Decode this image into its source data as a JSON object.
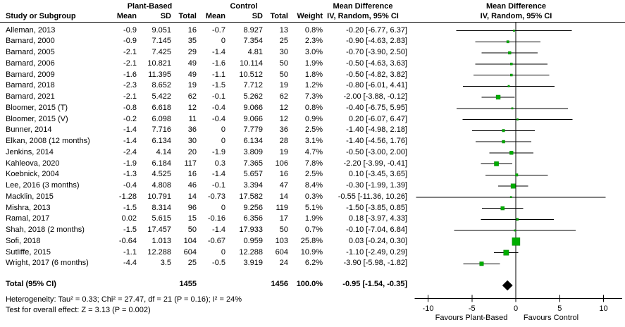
{
  "header": {
    "study": "Study or Subgroup",
    "group1": "Plant-Based",
    "group2": "Control",
    "mean": "Mean",
    "sd": "SD",
    "total": "Total",
    "weight": "Weight",
    "md_title": "Mean Difference",
    "md_subtitle": "IV, Random, 95% CI"
  },
  "colors": {
    "marker_fill": "#00AD00",
    "marker_stroke": "#008100",
    "line": "#000000",
    "diamond": "#000000",
    "text": "#000000"
  },
  "chart_data": {
    "type": "forest",
    "title": "Mean Difference",
    "effect_measure": "IV, Random, 95% CI",
    "axis": {
      "ticks": [
        -10,
        -5,
        0,
        5,
        10
      ],
      "tick_labels": [
        "-10",
        "-5",
        "0",
        "5",
        "10"
      ],
      "xlim": [
        -11.6,
        12.2
      ],
      "zero_line": 0,
      "favours_left": "Favours Plant-Based",
      "favours_right": "Favours Control"
    },
    "studies": [
      {
        "name": "Alleman, 2013",
        "mean1": "-0.9",
        "sd1": "9.051",
        "n1": "16",
        "mean2": "-0.7",
        "sd2": "8.927",
        "n2": "13",
        "weight": "0.8%",
        "weight_pct": 0.8,
        "md": -0.2,
        "lo": -6.77,
        "hi": 6.37,
        "ci": "-0.20 [-6.77, 6.37]"
      },
      {
        "name": "Barnard, 2000",
        "mean1": "-0.9",
        "sd1": "7.145",
        "n1": "35",
        "mean2": "0",
        "sd2": "7.354",
        "n2": "25",
        "weight": "2.3%",
        "weight_pct": 2.3,
        "md": -0.9,
        "lo": -4.63,
        "hi": 2.83,
        "ci": "-0.90 [-4.63, 2.83]"
      },
      {
        "name": "Barnard, 2005",
        "mean1": "-2.1",
        "sd1": "7.425",
        "n1": "29",
        "mean2": "-1.4",
        "sd2": "4.81",
        "n2": "30",
        "weight": "3.0%",
        "weight_pct": 3.0,
        "md": -0.7,
        "lo": -3.9,
        "hi": 2.5,
        "ci": "-0.70 [-3.90, 2.50]"
      },
      {
        "name": "Barnard, 2006",
        "mean1": "-2.1",
        "sd1": "10.821",
        "n1": "49",
        "mean2": "-1.6",
        "sd2": "10.114",
        "n2": "50",
        "weight": "1.9%",
        "weight_pct": 1.9,
        "md": -0.5,
        "lo": -4.63,
        "hi": 3.63,
        "ci": "-0.50 [-4.63, 3.63]"
      },
      {
        "name": "Barnard, 2009",
        "mean1": "-1.6",
        "sd1": "11.395",
        "n1": "49",
        "mean2": "-1.1",
        "sd2": "10.512",
        "n2": "50",
        "weight": "1.8%",
        "weight_pct": 1.8,
        "md": -0.5,
        "lo": -4.82,
        "hi": 3.82,
        "ci": "-0.50 [-4.82, 3.82]"
      },
      {
        "name": "Barnard, 2018",
        "mean1": "-2.3",
        "sd1": "8.652",
        "n1": "19",
        "mean2": "-1.5",
        "sd2": "7.712",
        "n2": "19",
        "weight": "1.2%",
        "weight_pct": 1.2,
        "md": -0.8,
        "lo": -6.01,
        "hi": 4.41,
        "ci": "-0.80 [-6.01, 4.41]"
      },
      {
        "name": "Barnard, 2021",
        "mean1": "-2.1",
        "sd1": "5.422",
        "n1": "62",
        "mean2": "-0.1",
        "sd2": "5.262",
        "n2": "62",
        "weight": "7.3%",
        "weight_pct": 7.3,
        "md": -2.0,
        "lo": -3.88,
        "hi": -0.12,
        "ci": "-2.00 [-3.88, -0.12]"
      },
      {
        "name": "Bloomer, 2015 (T)",
        "mean1": "-0.8",
        "sd1": "6.618",
        "n1": "12",
        "mean2": "-0.4",
        "sd2": "9.066",
        "n2": "12",
        "weight": "0.8%",
        "weight_pct": 0.8,
        "md": -0.4,
        "lo": -6.75,
        "hi": 5.95,
        "ci": "-0.40 [-6.75, 5.95]"
      },
      {
        "name": "Bloomer, 2015 (V)",
        "mean1": "-0.2",
        "sd1": "6.098",
        "n1": "11",
        "mean2": "-0.4",
        "sd2": "9.066",
        "n2": "12",
        "weight": "0.9%",
        "weight_pct": 0.9,
        "md": 0.2,
        "lo": -6.07,
        "hi": 6.47,
        "ci": "0.20 [-6.07, 6.47]"
      },
      {
        "name": "Bunner, 2014",
        "mean1": "-1.4",
        "sd1": "7.716",
        "n1": "36",
        "mean2": "0",
        "sd2": "7.779",
        "n2": "36",
        "weight": "2.5%",
        "weight_pct": 2.5,
        "md": -1.4,
        "lo": -4.98,
        "hi": 2.18,
        "ci": "-1.40 [-4.98, 2.18]"
      },
      {
        "name": "Elkan, 2008 (12 months)",
        "mean1": "-1.4",
        "sd1": "6.134",
        "n1": "30",
        "mean2": "0",
        "sd2": "6.134",
        "n2": "28",
        "weight": "3.1%",
        "weight_pct": 3.1,
        "md": -1.4,
        "lo": -4.56,
        "hi": 1.76,
        "ci": "-1.40 [-4.56, 1.76]"
      },
      {
        "name": "Jenkins, 2014",
        "mean1": "-2.4",
        "sd1": "4.14",
        "n1": "20",
        "mean2": "-1.9",
        "sd2": "3.809",
        "n2": "19",
        "weight": "4.7%",
        "weight_pct": 4.7,
        "md": -0.5,
        "lo": -3.0,
        "hi": 2.0,
        "ci": "-0.50 [-3.00, 2.00]"
      },
      {
        "name": "Kahleova, 2020",
        "mean1": "-1.9",
        "sd1": "6.184",
        "n1": "117",
        "mean2": "0.3",
        "sd2": "7.365",
        "n2": "106",
        "weight": "7.8%",
        "weight_pct": 7.8,
        "md": -2.2,
        "lo": -3.99,
        "hi": -0.41,
        "ci": "-2.20 [-3.99, -0.41]"
      },
      {
        "name": "Koebnick, 2004",
        "mean1": "-1.3",
        "sd1": "4.525",
        "n1": "16",
        "mean2": "-1.4",
        "sd2": "5.657",
        "n2": "16",
        "weight": "2.5%",
        "weight_pct": 2.5,
        "md": 0.1,
        "lo": -3.45,
        "hi": 3.65,
        "ci": "0.10 [-3.45, 3.65]"
      },
      {
        "name": "Lee, 2016 (3 months)",
        "mean1": "-0.4",
        "sd1": "4.808",
        "n1": "46",
        "mean2": "-0.1",
        "sd2": "3.394",
        "n2": "47",
        "weight": "8.4%",
        "weight_pct": 8.4,
        "md": -0.3,
        "lo": -1.99,
        "hi": 1.39,
        "ci": "-0.30 [-1.99, 1.39]"
      },
      {
        "name": "Macklin, 2015",
        "mean1": "-1.28",
        "sd1": "10.791",
        "n1": "14",
        "mean2": "-0.73",
        "sd2": "17.582",
        "n2": "14",
        "weight": "0.3%",
        "weight_pct": 0.3,
        "md": -0.55,
        "lo": -11.36,
        "hi": 10.26,
        "ci": "-0.55 [-11.36, 10.26]"
      },
      {
        "name": "Mishra, 2013",
        "mean1": "-1.5",
        "sd1": "8.314",
        "n1": "96",
        "mean2": "0",
        "sd2": "9.256",
        "n2": "119",
        "weight": "5.1%",
        "weight_pct": 5.1,
        "md": -1.5,
        "lo": -3.85,
        "hi": 0.85,
        "ci": "-1.50 [-3.85, 0.85]"
      },
      {
        "name": "Ramal, 2017",
        "mean1": "0.02",
        "sd1": "5.615",
        "n1": "15",
        "mean2": "-0.16",
        "sd2": "6.356",
        "n2": "17",
        "weight": "1.9%",
        "weight_pct": 1.9,
        "md": 0.18,
        "lo": -3.97,
        "hi": 4.33,
        "ci": "0.18 [-3.97, 4.33]"
      },
      {
        "name": "Shah, 2018 (2 months)",
        "mean1": "-1.5",
        "sd1": "17.457",
        "n1": "50",
        "mean2": "-1.4",
        "sd2": "17.933",
        "n2": "50",
        "weight": "0.7%",
        "weight_pct": 0.7,
        "md": -0.1,
        "lo": -7.04,
        "hi": 6.84,
        "ci": "-0.10 [-7.04, 6.84]"
      },
      {
        "name": "Sofi, 2018",
        "mean1": "-0.64",
        "sd1": "1.013",
        "n1": "104",
        "mean2": "-0.67",
        "sd2": "0.959",
        "n2": "103",
        "weight": "25.8%",
        "weight_pct": 25.8,
        "md": 0.03,
        "lo": -0.24,
        "hi": 0.3,
        "ci": "0.03 [-0.24, 0.30]"
      },
      {
        "name": "Sutliffe, 2015",
        "mean1": "-1.1",
        "sd1": "12.288",
        "n1": "604",
        "mean2": "0",
        "sd2": "12.288",
        "n2": "604",
        "weight": "10.9%",
        "weight_pct": 10.9,
        "md": -1.1,
        "lo": -2.49,
        "hi": 0.29,
        "ci": "-1.10 [-2.49, 0.29]"
      },
      {
        "name": "Wright, 2017 (6 months)",
        "mean1": "-4.4",
        "sd1": "3.5",
        "n1": "25",
        "mean2": "-0.5",
        "sd2": "3.919",
        "n2": "24",
        "weight": "6.2%",
        "weight_pct": 6.2,
        "md": -3.9,
        "lo": -5.98,
        "hi": -1.82,
        "ci": "-3.90 [-5.98, -1.82]"
      }
    ],
    "total": {
      "label": "Total (95% CI)",
      "n1": "1455",
      "n2": "1456",
      "weight": "100.0%",
      "md": -0.95,
      "lo": -1.54,
      "hi": -0.35,
      "ci": "-0.95 [-1.54, -0.35]"
    },
    "heterogeneity": "Heterogeneity: Tau² = 0.33; Chi² = 27.47, df = 21 (P = 0.16); I² = 24%",
    "overall_effect": "Test for overall effect: Z = 3.13 (P = 0.002)"
  }
}
